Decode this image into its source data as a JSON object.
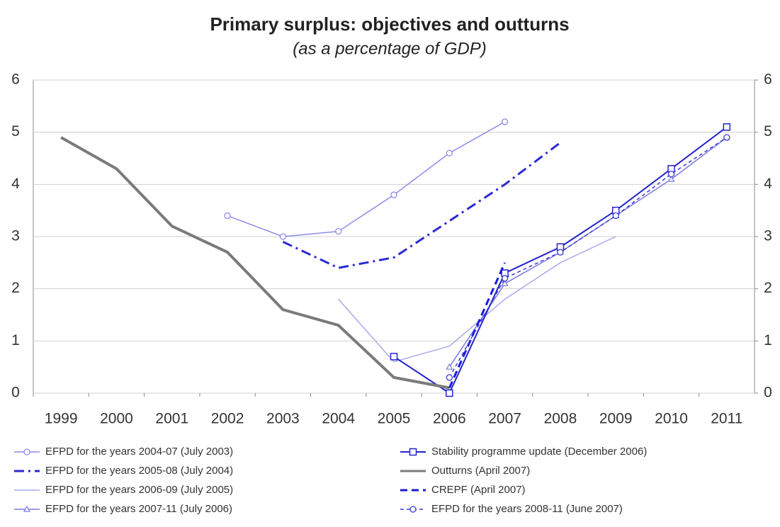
{
  "chart_data": {
    "type": "line",
    "title": "Primary surplus: objectives and outturns",
    "subtitle": "(as a percentage of GDP)",
    "categories": [
      "1999",
      "2000",
      "2001",
      "2002",
      "2003",
      "2004",
      "2005",
      "2006",
      "2007",
      "2008",
      "2009",
      "2010",
      "2011"
    ],
    "ylim": [
      0,
      6
    ],
    "yticks": [
      0,
      1,
      2,
      3,
      4,
      5,
      6
    ],
    "y2lim": [
      0,
      6
    ],
    "y2ticks": [
      0,
      1,
      2,
      3,
      4,
      5,
      6
    ],
    "grid": true,
    "series": [
      {
        "name": "EFPD for the years 2004-07 (July 2003)",
        "color": "#8c8cea",
        "dash": "solid",
        "marker": "circle",
        "width": 1.5,
        "values": [
          null,
          null,
          null,
          3.4,
          3.0,
          3.1,
          3.8,
          4.6,
          5.2,
          null,
          null,
          null,
          null
        ]
      },
      {
        "name": "EFPD for the years 2005-08 (July 2004)",
        "color": "#2a2ad6",
        "dash": "dashdot",
        "marker": "none",
        "width": 3,
        "values": [
          null,
          null,
          null,
          null,
          2.9,
          2.4,
          2.6,
          3.3,
          4.0,
          4.8,
          null,
          null,
          null
        ]
      },
      {
        "name": "EFPD for the years 2006-09 (July 2005)",
        "color": "#a9a9f0",
        "dash": "solid",
        "marker": "none",
        "width": 1.5,
        "values": [
          null,
          null,
          null,
          null,
          null,
          1.8,
          0.6,
          0.9,
          1.8,
          2.5,
          3.0,
          null,
          null
        ]
      },
      {
        "name": "EFPD for the years 2007-11 (July 2006)",
        "color": "#7a7ae0",
        "dash": "solid",
        "marker": "triangle",
        "width": 1.5,
        "values": [
          null,
          null,
          null,
          null,
          null,
          null,
          null,
          0.5,
          2.1,
          2.7,
          3.4,
          4.1,
          4.9
        ]
      },
      {
        "name": "Stability programme update (December 2006)",
        "color": "#2323cc",
        "dash": "solid",
        "marker": "square",
        "width": 2,
        "values": [
          null,
          null,
          null,
          null,
          null,
          null,
          0.7,
          0.0,
          2.3,
          2.8,
          3.5,
          4.3,
          5.1
        ]
      },
      {
        "name": "Outturns (April 2007)",
        "color": "#7a7a7a",
        "dash": "solid",
        "marker": "none",
        "width": 4,
        "values": [
          4.9,
          4.3,
          3.2,
          2.7,
          1.6,
          1.3,
          0.3,
          0.1,
          null,
          null,
          null,
          null,
          null
        ]
      },
      {
        "name": "CREPF (April 2007)",
        "color": "#1a1ad8",
        "dash": "dash",
        "marker": "none",
        "width": 3,
        "values": [
          null,
          null,
          null,
          null,
          null,
          null,
          null,
          0.1,
          2.5,
          null,
          null,
          null,
          null
        ]
      },
      {
        "name": "EFPD for the years 2008-11 (June 2007)",
        "color": "#3a3ad8",
        "dash": "shortdash",
        "marker": "circle",
        "width": 1.5,
        "values": [
          null,
          null,
          null,
          null,
          null,
          null,
          null,
          0.3,
          2.2,
          2.7,
          3.4,
          4.2,
          4.9
        ]
      }
    ]
  }
}
